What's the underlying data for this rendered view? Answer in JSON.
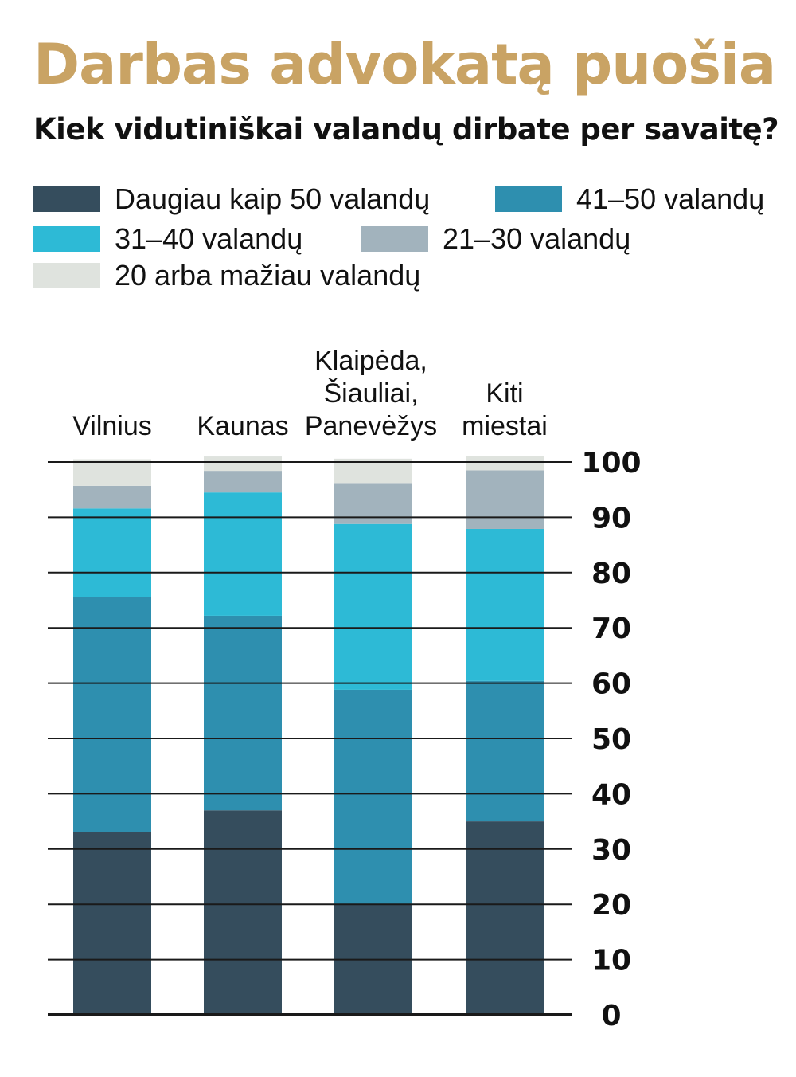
{
  "title": "Darbas advokatą puošia",
  "subtitle": "Kiek vidutiniškai valandų dirbate per savaitę?",
  "colors": {
    "title": "#c9a364",
    "series": [
      "#354d5d",
      "#2e8faf",
      "#2dbad6",
      "#a2b3bd",
      "#dfe3de"
    ],
    "gridline": "#1a1a1a"
  },
  "chart_data": {
    "type": "bar",
    "stacked": true,
    "categories": [
      "Vilnius",
      "Kaunas",
      "Klaipėda,\nŠiauliai,\nPanevėžys",
      "Kiti\nmiestai"
    ],
    "series": [
      {
        "name": "Daugiau kaip 50 valandų",
        "values": [
          33,
          37,
          20,
          35
        ]
      },
      {
        "name": "41–50 valandų",
        "values": [
          42.6,
          35.2,
          38.8,
          25.4
        ]
      },
      {
        "name": "31–40 valandų",
        "values": [
          16,
          22.3,
          30.0,
          27.5
        ]
      },
      {
        "name": "21–30 valandų",
        "values": [
          4.1,
          3.9,
          7.4,
          10.6
        ]
      },
      {
        "name": "20 arba mažiau valandų",
        "values": [
          4.8,
          2.6,
          4.4,
          2.6
        ]
      }
    ],
    "ylim": [
      0,
      100
    ],
    "yticks": [
      "0",
      "10",
      "20",
      "30",
      "40",
      "50",
      "60",
      "70",
      "80",
      "90",
      "100"
    ],
    "y_axis_side": "right",
    "grid": true,
    "legend": "top"
  }
}
